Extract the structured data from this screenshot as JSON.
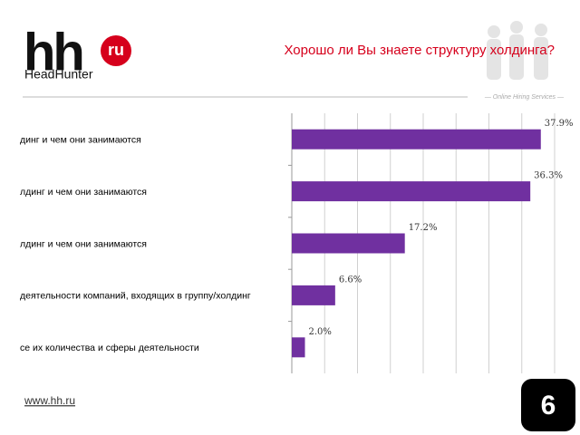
{
  "header": {
    "logo": "hh",
    "logo_badge": "ru",
    "brand": "HeadHunter",
    "tagline": "— Online Hiring Services —"
  },
  "footer": {
    "url": "www.hh.ru",
    "page_number": "6"
  },
  "chart_data": {
    "type": "hbar",
    "title": "Хорошо ли Вы знаете структуру холдинга?",
    "categories": [
      "динг и чем они занимаются",
      "лдинг и чем они занимаются",
      "лдинг и чем они занимаются",
      "деятельности компаний, входящих в группу/холдинг",
      "се их количества и сферы деятельности"
    ],
    "values": [
      37.9,
      36.3,
      17.2,
      6.6,
      2.0
    ],
    "value_labels": [
      "37.9%",
      "36.3%",
      "17.2%",
      "6.6%",
      "2.0%"
    ],
    "color": "#7030a0",
    "xlim": [
      0,
      40
    ],
    "xticks": [
      0,
      5,
      10,
      15,
      20,
      25,
      30,
      35,
      40
    ],
    "grid": true
  }
}
